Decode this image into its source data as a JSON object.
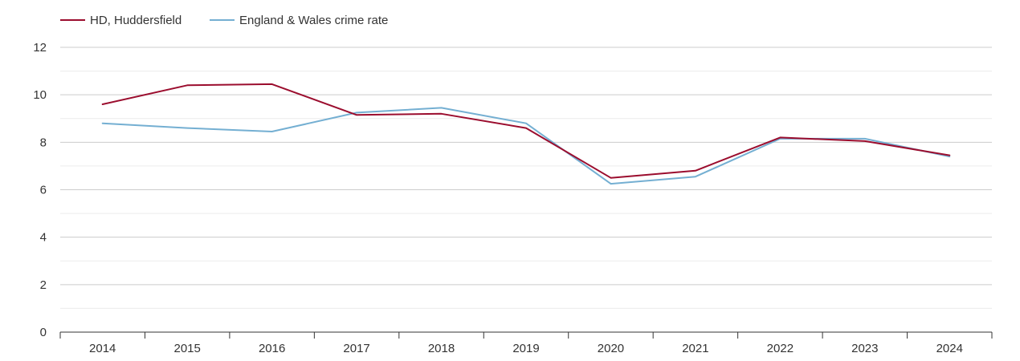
{
  "chart_data": {
    "type": "line",
    "categories": [
      "2014",
      "2015",
      "2016",
      "2017",
      "2018",
      "2019",
      "2020",
      "2021",
      "2022",
      "2023",
      "2024"
    ],
    "series": [
      {
        "name": "HD, Huddersfield",
        "color": "#9b0d2e",
        "values": [
          9.6,
          10.4,
          10.45,
          9.15,
          9.2,
          8.6,
          6.5,
          6.8,
          8.2,
          8.05,
          7.45
        ]
      },
      {
        "name": "England & Wales crime rate",
        "color": "#74afd2",
        "values": [
          8.8,
          8.6,
          8.45,
          9.25,
          9.45,
          8.8,
          6.25,
          6.55,
          8.15,
          8.15,
          7.4
        ]
      }
    ],
    "ylim": [
      0,
      12
    ],
    "yticks": [
      "0",
      "2",
      "4",
      "6",
      "8",
      "10",
      "12"
    ],
    "grid": true,
    "legend_position": "top-left"
  }
}
